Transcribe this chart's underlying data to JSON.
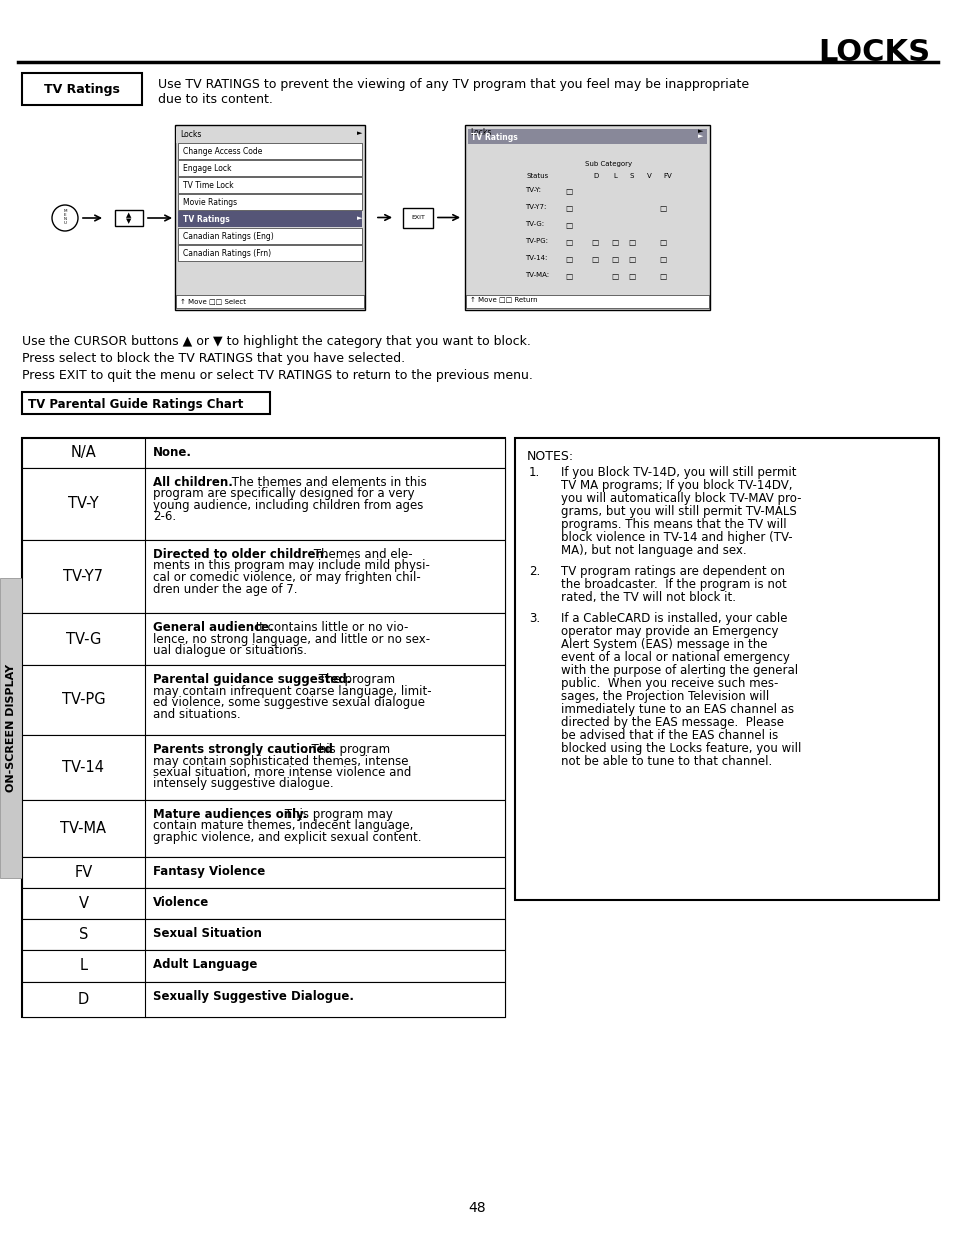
{
  "title": "LOCKS",
  "tv_ratings_box_text": "TV Ratings",
  "tv_ratings_desc1": "Use TV RATINGS to prevent the viewing of any TV program that you feel may be inappropriate",
  "tv_ratings_desc2": "due to its content.",
  "cursor_lines": [
    "Use the CURSOR buttons ▲ or ▼ to highlight the category that you want to block.",
    "Press select to block the TV RATINGS that you have selected.",
    "Press EXIT to quit the menu or select TV RATINGS to return to the previous menu."
  ],
  "chart_label": "TV Parental Guide Ratings Chart",
  "table_rows": [
    {
      "label": "N/A",
      "bold": "None.",
      "rest": ""
    },
    {
      "label": "TV-Y",
      "bold": "All children.",
      "rest": " The themes and elements in this\nprogram are specifically designed for a very\nyoung audience, including children from ages\n2-6."
    },
    {
      "label": "TV-Y7",
      "bold": "Directed to older children.",
      "rest": " Themes and ele-\nments in this program may include mild physi-\ncal or comedic violence, or may frighten chil-\ndren under the age of 7."
    },
    {
      "label": "TV-G",
      "bold": "General audience.",
      "rest": " It contains little or no vio-\nlence, no strong language, and little or no sex-\nual dialogue or situations."
    },
    {
      "label": "TV-PG",
      "bold": "Parental guidance suggested.",
      "rest": " The program\nmay contain infrequent coarse language, limit-\ned violence, some suggestive sexual dialogue\nand situations."
    },
    {
      "label": "TV-14",
      "bold": "Parents strongly cautioned",
      "rest": ". This program\nmay contain sophisticated themes, intense\nsexual situation, more intense violence and\nintensely suggestive dialogue."
    },
    {
      "label": "TV-MA",
      "bold": "Mature audiences only.",
      "rest": " This program may\ncontain mature themes, indecent language,\ngraphic violence, and explicit sexual content."
    },
    {
      "label": "FV",
      "bold": "Fantasy Violence",
      "rest": ""
    },
    {
      "label": "V",
      "bold": "Violence",
      "rest": ""
    },
    {
      "label": "S",
      "bold": "Sexual Situation",
      "rest": ""
    },
    {
      "label": "L",
      "bold": "Adult Language",
      "rest": ""
    },
    {
      "label": "D",
      "bold": "Sexually Suggestive Dialogue.",
      "rest": ""
    }
  ],
  "notes_title": "NOTES:",
  "notes": [
    "If you Block TV-14D, you will still permit\nTV MA programs; If you block TV-14DV,\nyou will automatically block TV-MAV pro-\ngrams, but you will still permit TV-MALS\nprograms. This means that the TV will\nblock violence in TV-14 and higher (TV-\nMA), but not language and sex.",
    "TV program ratings are dependent on\nthe broadcaster.  If the program is not\nrated, the TV will not block it.",
    "If a CableCARD is installed, your cable\noperator may provide an Emergency\nAlert System (EAS) message in the\nevent of a local or national emergency\nwith the purpose of alerting the general\npublic.  When you receive such mes-\nsages, the Projection Television will\nimmediately tune to an EAS channel as\ndirected by the EAS message.  Please\nbe advised that if the EAS channel is\nblocked using the Locks feature, you will\nnot be able to tune to that channel."
  ],
  "side_label": "ON-SCREEN DISPLAY",
  "page_number": "48"
}
